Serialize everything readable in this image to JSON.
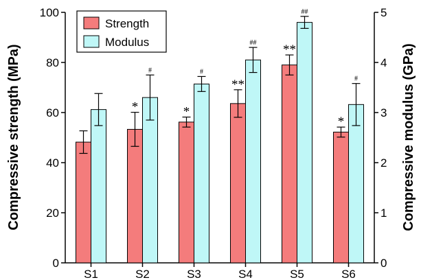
{
  "chart_data": {
    "type": "bar",
    "categories": [
      "S1",
      "S2",
      "S3",
      "S4",
      "S5",
      "S6"
    ],
    "series": [
      {
        "name": "Strength",
        "axis": "left",
        "color": "#f47c7c",
        "values": [
          48.2,
          53.3,
          56.2,
          63.6,
          79.0,
          52.2
        ],
        "errors": [
          4.5,
          6.8,
          2.0,
          5.5,
          4.0,
          2.0
        ],
        "marks": [
          "",
          "*",
          "*",
          "**",
          "**",
          "*"
        ]
      },
      {
        "name": "Modulus",
        "axis": "right",
        "color": "#bff7f7",
        "values": [
          3.06,
          3.3,
          3.57,
          4.05,
          4.8,
          3.16
        ],
        "errors": [
          0.32,
          0.45,
          0.15,
          0.25,
          0.12,
          0.42
        ],
        "marks": [
          "",
          "#",
          "#",
          "##",
          "##",
          "#"
        ]
      }
    ],
    "ylabel": "Compressive strength (MPa)",
    "y2label": "Compressive modulus (GPa)",
    "ylim": [
      0,
      100
    ],
    "y2lim": [
      0,
      5
    ],
    "yticks": [
      0,
      20,
      40,
      60,
      80,
      100
    ],
    "y2ticks": [
      0,
      1,
      2,
      3,
      4,
      5
    ],
    "legend_position": "top-left",
    "grid": false
  }
}
